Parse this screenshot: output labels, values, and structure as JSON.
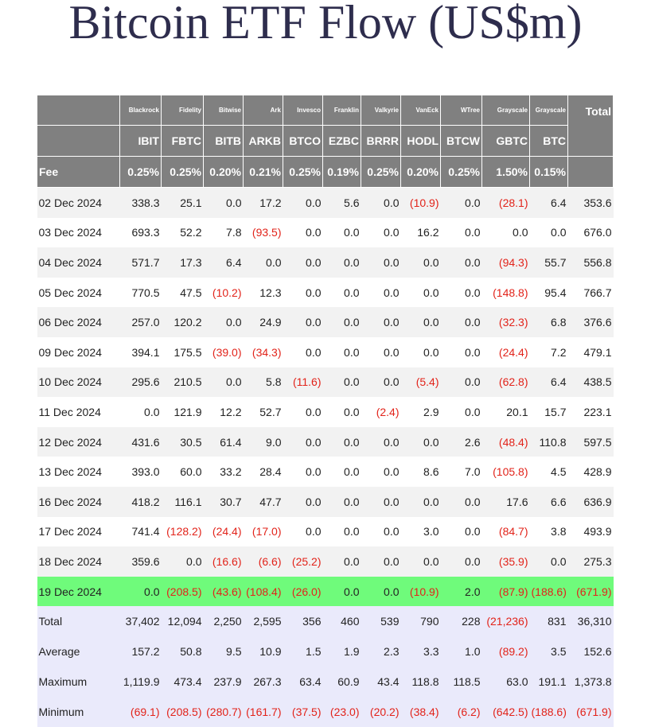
{
  "title": "Bitcoin ETF Flow (US$m)",
  "table": {
    "issuers": [
      "Blackrock",
      "Fidelity",
      "Bitwise",
      "Ark",
      "Invesco",
      "Franklin",
      "Valkyrie",
      "VanEck",
      "WTree",
      "Grayscale",
      "Grayscale"
    ],
    "total_label": "Total",
    "tickers": [
      "IBIT",
      "FBTC",
      "BITB",
      "ARKB",
      "BTCO",
      "EZBC",
      "BRRR",
      "HODL",
      "BTCW",
      "GBTC",
      "BTC"
    ],
    "fee_label": "Fee",
    "fees": [
      "0.25%",
      "0.25%",
      "0.20%",
      "0.21%",
      "0.25%",
      "0.19%",
      "0.25%",
      "0.20%",
      "0.25%",
      "1.50%",
      "0.15%"
    ],
    "rows": [
      [
        "02 Dec 2024",
        "338.3",
        "25.1",
        "0.0",
        "17.2",
        "0.0",
        "5.6",
        "0.0",
        "(10.9)",
        "0.0",
        "(28.1)",
        "6.4",
        "353.6"
      ],
      [
        "03 Dec 2024",
        "693.3",
        "52.2",
        "7.8",
        "(93.5)",
        "0.0",
        "0.0",
        "0.0",
        "16.2",
        "0.0",
        "0.0",
        "0.0",
        "676.0"
      ],
      [
        "04 Dec 2024",
        "571.7",
        "17.3",
        "6.4",
        "0.0",
        "0.0",
        "0.0",
        "0.0",
        "0.0",
        "0.0",
        "(94.3)",
        "55.7",
        "556.8"
      ],
      [
        "05 Dec 2024",
        "770.5",
        "47.5",
        "(10.2)",
        "12.3",
        "0.0",
        "0.0",
        "0.0",
        "0.0",
        "0.0",
        "(148.8)",
        "95.4",
        "766.7"
      ],
      [
        "06 Dec 2024",
        "257.0",
        "120.2",
        "0.0",
        "24.9",
        "0.0",
        "0.0",
        "0.0",
        "0.0",
        "0.0",
        "(32.3)",
        "6.8",
        "376.6"
      ],
      [
        "09 Dec 2024",
        "394.1",
        "175.5",
        "(39.0)",
        "(34.3)",
        "0.0",
        "0.0",
        "0.0",
        "0.0",
        "0.0",
        "(24.4)",
        "7.2",
        "479.1"
      ],
      [
        "10 Dec 2024",
        "295.6",
        "210.5",
        "0.0",
        "5.8",
        "(11.6)",
        "0.0",
        "0.0",
        "(5.4)",
        "0.0",
        "(62.8)",
        "6.4",
        "438.5"
      ],
      [
        "11 Dec 2024",
        "0.0",
        "121.9",
        "12.2",
        "52.7",
        "0.0",
        "0.0",
        "(2.4)",
        "2.9",
        "0.0",
        "20.1",
        "15.7",
        "223.1"
      ],
      [
        "12 Dec 2024",
        "431.6",
        "30.5",
        "61.4",
        "9.0",
        "0.0",
        "0.0",
        "0.0",
        "0.0",
        "2.6",
        "(48.4)",
        "110.8",
        "597.5"
      ],
      [
        "13 Dec 2024",
        "393.0",
        "60.0",
        "33.2",
        "28.4",
        "0.0",
        "0.0",
        "0.0",
        "8.6",
        "7.0",
        "(105.8)",
        "4.5",
        "428.9"
      ],
      [
        "16 Dec 2024",
        "418.2",
        "116.1",
        "30.7",
        "47.7",
        "0.0",
        "0.0",
        "0.0",
        "0.0",
        "0.0",
        "17.6",
        "6.6",
        "636.9"
      ],
      [
        "17 Dec 2024",
        "741.4",
        "(128.2)",
        "(24.4)",
        "(17.0)",
        "0.0",
        "0.0",
        "0.0",
        "3.0",
        "0.0",
        "(84.7)",
        "3.8",
        "493.9"
      ],
      [
        "18 Dec 2024",
        "359.6",
        "0.0",
        "(16.6)",
        "(6.6)",
        "(25.2)",
        "0.0",
        "0.0",
        "0.0",
        "0.0",
        "(35.9)",
        "0.0",
        "275.3"
      ],
      [
        "19 Dec 2024",
        "0.0",
        "(208.5)",
        "(43.6)",
        "(108.4)",
        "(26.0)",
        "0.0",
        "0.0",
        "(10.9)",
        "2.0",
        "(87.9)",
        "(188.6)",
        "(671.9)"
      ]
    ],
    "summary": [
      [
        "Total",
        "37,402",
        "12,094",
        "2,250",
        "2,595",
        "356",
        "460",
        "539",
        "790",
        "228",
        "(21,236)",
        "831",
        "36,310"
      ],
      [
        "Average",
        "157.2",
        "50.8",
        "9.5",
        "10.9",
        "1.5",
        "1.9",
        "2.3",
        "3.3",
        "1.0",
        "(89.2)",
        "3.5",
        "152.6"
      ],
      [
        "Maximum",
        "1,119.9",
        "473.4",
        "237.9",
        "267.3",
        "63.4",
        "60.9",
        "43.4",
        "118.8",
        "118.5",
        "63.0",
        "191.1",
        "1,373.8"
      ],
      [
        "Minimum",
        "(69.1)",
        "(208.5)",
        "(280.7)",
        "(161.7)",
        "(37.5)",
        "(23.0)",
        "(20.2)",
        "(38.4)",
        "(6.2)",
        "(642.5)",
        "(188.6)",
        "(671.9)"
      ]
    ]
  }
}
